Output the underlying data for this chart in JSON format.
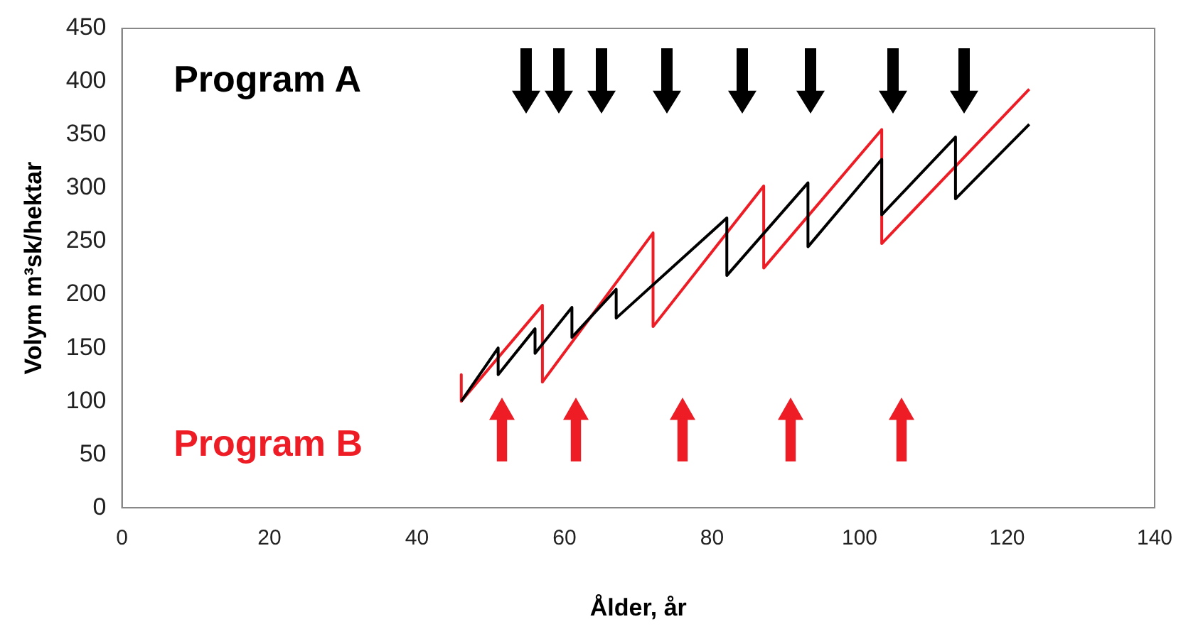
{
  "chart_data": {
    "type": "line",
    "xlabel": "Ålder, år",
    "ylabel": "Volym m³sk/hektar",
    "xlim": [
      0,
      140
    ],
    "xticks": [
      0,
      20,
      40,
      60,
      80,
      100,
      120,
      140
    ],
    "ylim": [
      0,
      450
    ],
    "yticks": [
      0,
      50,
      100,
      150,
      200,
      250,
      300,
      350,
      400,
      450
    ],
    "grid": false,
    "legend": false,
    "marker": "none",
    "line_style": "solid",
    "annotations": [
      "Program A",
      "Program B"
    ],
    "series": [
      {
        "color": "#000000",
        "x": [
          46,
          51,
          51,
          56,
          56,
          61,
          61,
          67,
          67,
          82,
          82,
          93,
          93,
          103,
          103,
          113,
          113,
          123
        ],
        "values": [
          100,
          150,
          125,
          168,
          145,
          188,
          160,
          205,
          178,
          272,
          218,
          305,
          245,
          327,
          275,
          348,
          290,
          360
        ]
      },
      {
        "color": "#ee1c25",
        "x": [
          46,
          46,
          57,
          57,
          72,
          72,
          87,
          87,
          103,
          103,
          123
        ],
        "values": [
          125,
          100,
          190,
          118,
          258,
          170,
          302,
          225,
          355,
          248,
          393
        ]
      }
    ]
  }
}
